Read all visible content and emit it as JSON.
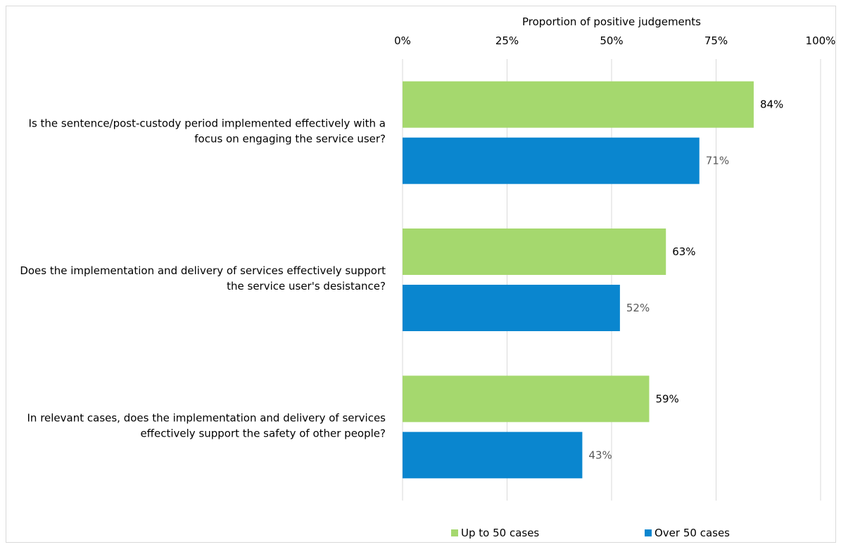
{
  "chart_data": {
    "type": "bar",
    "orientation": "horizontal",
    "x_axis_title": "Proportion of positive judgements",
    "x_axis_position": "top",
    "xlim": [
      0,
      100
    ],
    "x_ticks": [
      0,
      25,
      50,
      75,
      100
    ],
    "x_tick_labels": [
      "0%",
      "25%",
      "50%",
      "75%",
      "100%"
    ],
    "grid": true,
    "categories": [
      [
        "Is the sentence/post-custody period implemented effectively with a",
        "focus on engaging the service user?"
      ],
      [
        "Does the implementation and delivery of services effectively support",
        "the service user's desistance?"
      ],
      [
        "In relevant cases, does the implementation and delivery of services",
        "effectively support the safety of other people?"
      ]
    ],
    "series": [
      {
        "name": "Up to 50 cases",
        "color": "#a5d86e",
        "label_color": "#000000",
        "values": [
          84,
          63,
          59
        ],
        "labels": [
          "84%",
          "63%",
          "59%"
        ]
      },
      {
        "name": "Over 50 cases",
        "color": "#0a86cf",
        "label_color": "#595959",
        "values": [
          71,
          52,
          43
        ],
        "labels": [
          "71%",
          "52%",
          "43%"
        ]
      }
    ],
    "legend_position": "bottom"
  }
}
